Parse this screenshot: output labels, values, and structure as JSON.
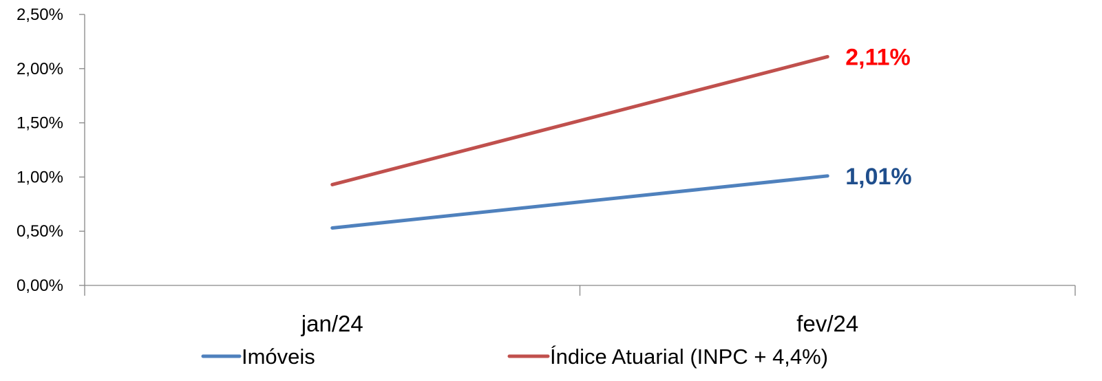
{
  "chart_data": {
    "type": "line",
    "title": "",
    "xlabel": "",
    "ylabel": "",
    "categories": [
      "jan/24",
      "fev/24"
    ],
    "ylim": [
      0,
      2.5
    ],
    "y_ticks": [
      "0,00%",
      "0,50%",
      "1,00%",
      "1,50%",
      "2,00%",
      "2,50%"
    ],
    "y_tick_values": [
      0,
      0.5,
      1.0,
      1.5,
      2.0,
      2.5
    ],
    "grid": false,
    "legend_position": "bottom",
    "series": [
      {
        "name": "Imóveis",
        "values": [
          0.53,
          1.01
        ],
        "color": "#4F81BD",
        "end_label": "1,01%",
        "end_label_color": "#1F4E8C"
      },
      {
        "name": "Índice Atuarial (INPC + 4,4%)",
        "values": [
          0.93,
          2.11
        ],
        "color": "#C0504D",
        "end_label": "2,11%",
        "end_label_color": "#FF0000"
      }
    ]
  }
}
